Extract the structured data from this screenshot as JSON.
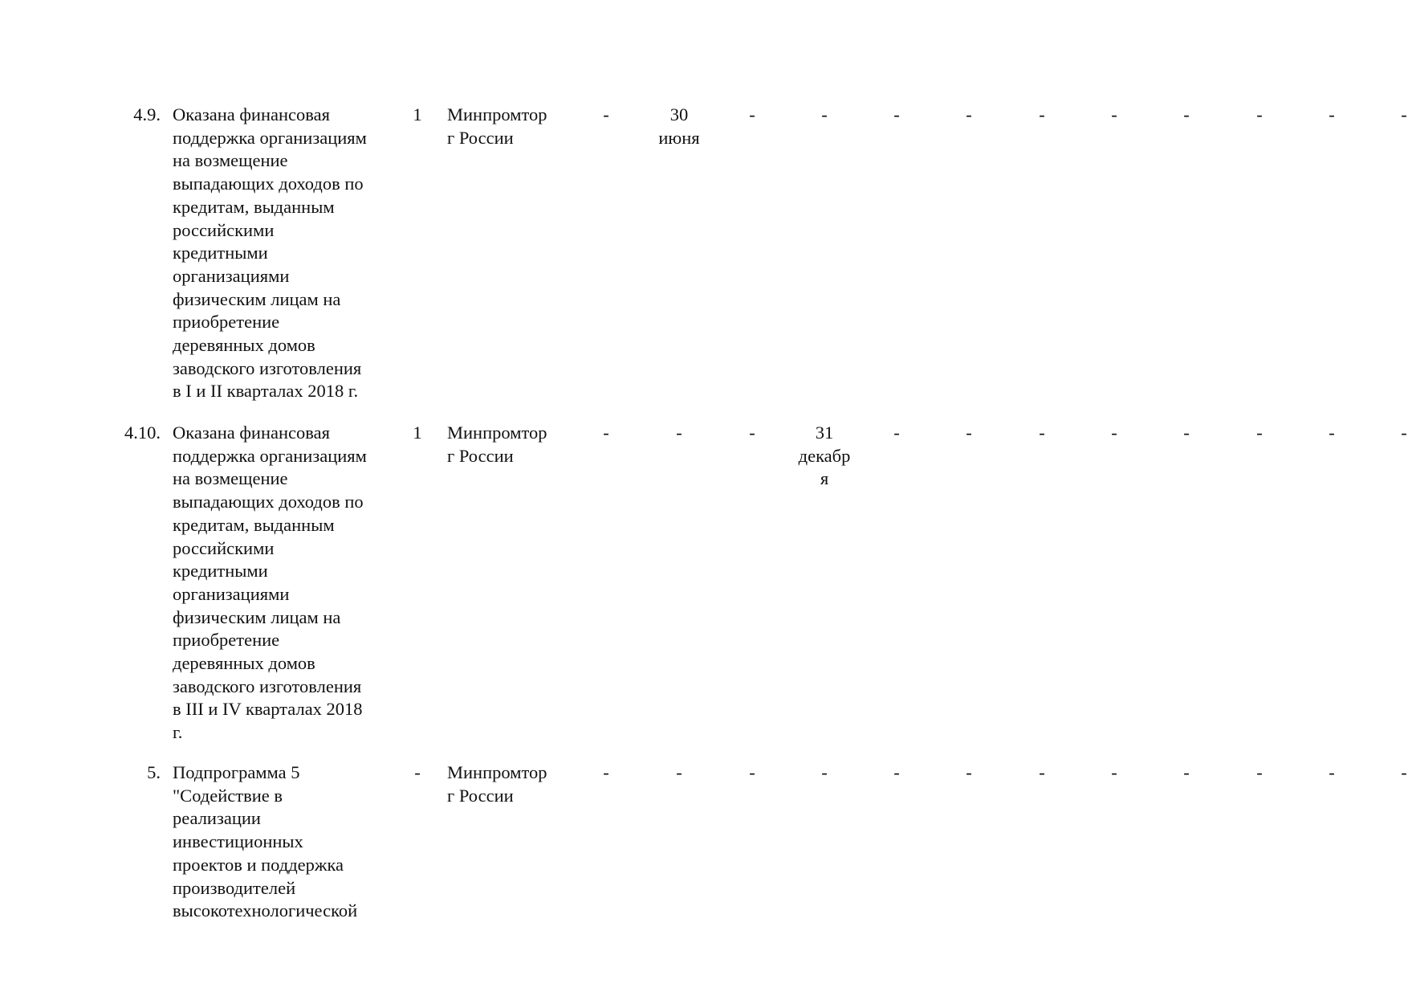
{
  "rows": [
    {
      "number": "4.9.",
      "text_lines": [
        "Оказана финансовая",
        "поддержка организациям",
        "на возмещение",
        "выпадающих доходов по",
        "кредитам, выданным",
        "российскими",
        "кредитными",
        "организациями",
        "физическим лицам на",
        "приобретение",
        "деревянных домов",
        "заводского изготовления",
        "в I и II кварталах 2018 г."
      ],
      "quantity": "1",
      "executor_lines": [
        "Минпромтор",
        "г России"
      ],
      "cells": [
        [
          "-"
        ],
        [
          "30",
          "июня"
        ],
        [
          "-"
        ],
        [
          "-"
        ],
        [
          "-"
        ],
        [
          "-"
        ],
        [
          "-"
        ],
        [
          "-"
        ],
        [
          "-"
        ],
        [
          "-"
        ],
        [
          "-"
        ],
        [
          "-"
        ]
      ]
    },
    {
      "number": "4.10.",
      "text_lines": [
        "Оказана финансовая",
        "поддержка организациям",
        "на возмещение",
        "выпадающих доходов по",
        "кредитам, выданным",
        "российскими",
        "кредитными",
        "организациями",
        "физическим лицам на",
        "приобретение",
        "деревянных домов",
        "заводского изготовления",
        "в III и IV кварталах 2018",
        "г."
      ],
      "quantity": "1",
      "executor_lines": [
        "Минпромтор",
        "г России"
      ],
      "cells": [
        [
          "-"
        ],
        [
          "-"
        ],
        [
          "-"
        ],
        [
          "31",
          "декабр",
          "я"
        ],
        [
          "-"
        ],
        [
          "-"
        ],
        [
          "-"
        ],
        [
          "-"
        ],
        [
          "-"
        ],
        [
          "-"
        ],
        [
          "-"
        ],
        [
          "-"
        ]
      ]
    },
    {
      "number": "5.",
      "text_lines": [
        "Подпрограмма 5",
        "\"Содействие в",
        "реализации",
        "инвестиционных",
        "проектов и поддержка",
        "производителей",
        "высокотехнологической"
      ],
      "quantity": "-",
      "executor_lines": [
        "Минпромтор",
        "г России"
      ],
      "cells": [
        [
          "-"
        ],
        [
          "-"
        ],
        [
          "-"
        ],
        [
          "-"
        ],
        [
          "-"
        ],
        [
          "-"
        ],
        [
          "-"
        ],
        [
          "-"
        ],
        [
          "-"
        ],
        [
          "-"
        ],
        [
          "-"
        ],
        [
          "-"
        ]
      ]
    }
  ]
}
